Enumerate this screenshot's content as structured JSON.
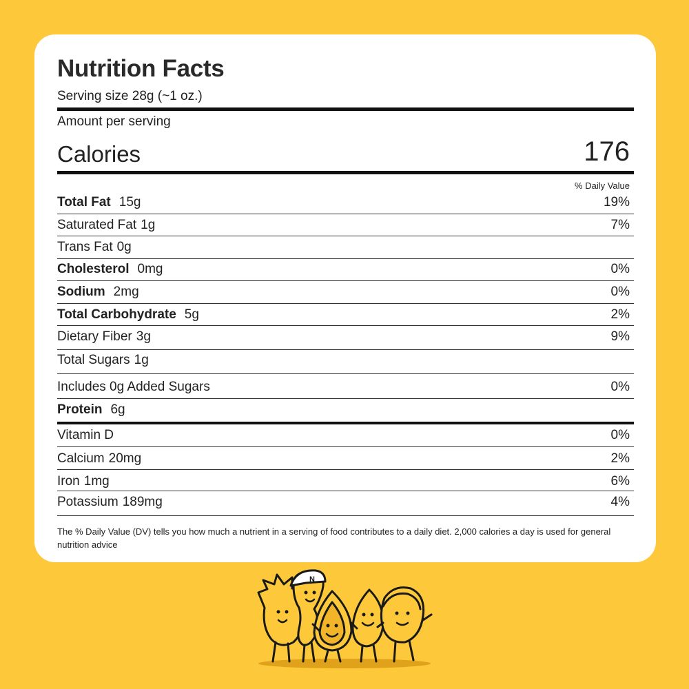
{
  "label": {
    "title": "Nutrition Facts",
    "serving_size": "Serving size 28g (~1 oz.)",
    "amount_per_serving": "Amount per serving",
    "calories_label": "Calories",
    "calories_value": "176",
    "daily_value_header": "% Daily Value",
    "nutrients": [
      {
        "name": "Total Fat",
        "amount": "15g",
        "dv": "19%",
        "bold": true
      },
      {
        "name": "Saturated Fat",
        "amount": "1g",
        "dv": "7%",
        "bold": false
      },
      {
        "name": "Trans Fat",
        "amount": "0g",
        "dv": "",
        "bold": false
      },
      {
        "name": "Cholesterol",
        "amount": "0mg",
        "dv": "0%",
        "bold": true
      },
      {
        "name": "Sodium",
        "amount": "2mg",
        "dv": "0%",
        "bold": true
      },
      {
        "name": "Total Carbohydrate",
        "amount": "5g",
        "dv": "2%",
        "bold": true
      },
      {
        "name": "Dietary Fiber",
        "amount": "3g",
        "dv": "9%",
        "bold": false
      },
      {
        "name": "Total Sugars",
        "amount": "1g",
        "dv": "",
        "bold": false
      },
      {
        "name": "Includes 0g Added Sugars",
        "amount": "",
        "dv": "0%",
        "bold": false
      },
      {
        "name": "Protein",
        "amount": "6g",
        "dv": "",
        "bold": true
      }
    ],
    "vitamins": [
      {
        "name": "Vitamin D",
        "amount": "",
        "dv": "0%"
      },
      {
        "name": "Calcium",
        "amount": "20mg",
        "dv": "2%"
      },
      {
        "name": "Iron",
        "amount": "1mg",
        "dv": "6%"
      },
      {
        "name": "Potassium",
        "amount": "189mg",
        "dv": "4%"
      }
    ],
    "footnote": "The % Daily Value (DV) tells you how much a nutrient in a serving of food contributes to a daily diet. 2,000 calories a day is used for general nutrition advice"
  },
  "illustration": {
    "icon": "nut-mascots-illustration",
    "cap_letter": "N"
  },
  "colors": {
    "background": "#FDC93B",
    "card": "#FFFFFF",
    "rule": "#111111"
  }
}
